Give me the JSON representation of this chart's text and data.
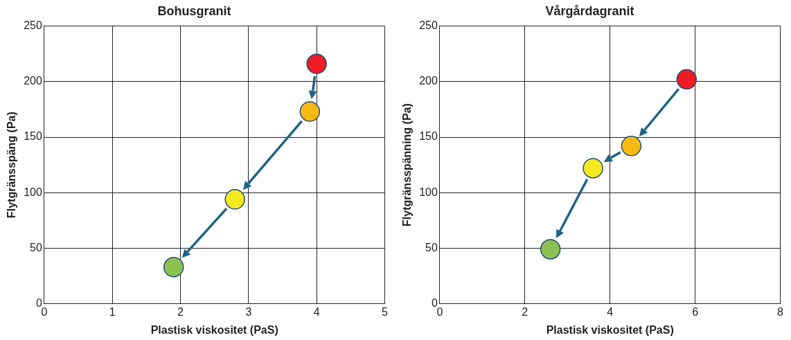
{
  "chart_data": [
    {
      "type": "scatter",
      "title": "Bohusgranit",
      "xlabel": "Plastisk viskositet (PaS)",
      "ylabel": "Flytgränsspäng (Pa)",
      "x": [
        4.0,
        3.9,
        2.8,
        1.9
      ],
      "values": [
        216,
        173,
        94,
        33
      ],
      "colors": [
        "#ee1c25",
        "#fbb914",
        "#f5ea1e",
        "#8cc152"
      ],
      "xlim": [
        0,
        5
      ],
      "xticks": [
        0,
        1,
        2,
        3,
        4,
        5
      ],
      "ylim": [
        0,
        250
      ],
      "yticks": [
        0,
        50,
        100,
        150,
        200,
        250
      ],
      "grid": true,
      "legend": false,
      "marker": "circle"
    },
    {
      "type": "scatter",
      "title": "Vårgårdagranit",
      "xlabel": "Plastisk viskositet (PaS)",
      "ylabel": "Flytgränsspänning (Pa)",
      "x": [
        5.8,
        4.5,
        3.6,
        2.6
      ],
      "values": [
        202,
        142,
        122,
        49
      ],
      "colors": [
        "#ee1c25",
        "#fbb914",
        "#f5ea1e",
        "#8cc152"
      ],
      "xlim": [
        0,
        8
      ],
      "xticks": [
        0,
        2,
        4,
        6,
        8
      ],
      "ylim": [
        0,
        250
      ],
      "yticks": [
        0,
        50,
        100,
        150,
        200,
        250
      ],
      "grid": true,
      "legend": false,
      "marker": "circle"
    }
  ]
}
